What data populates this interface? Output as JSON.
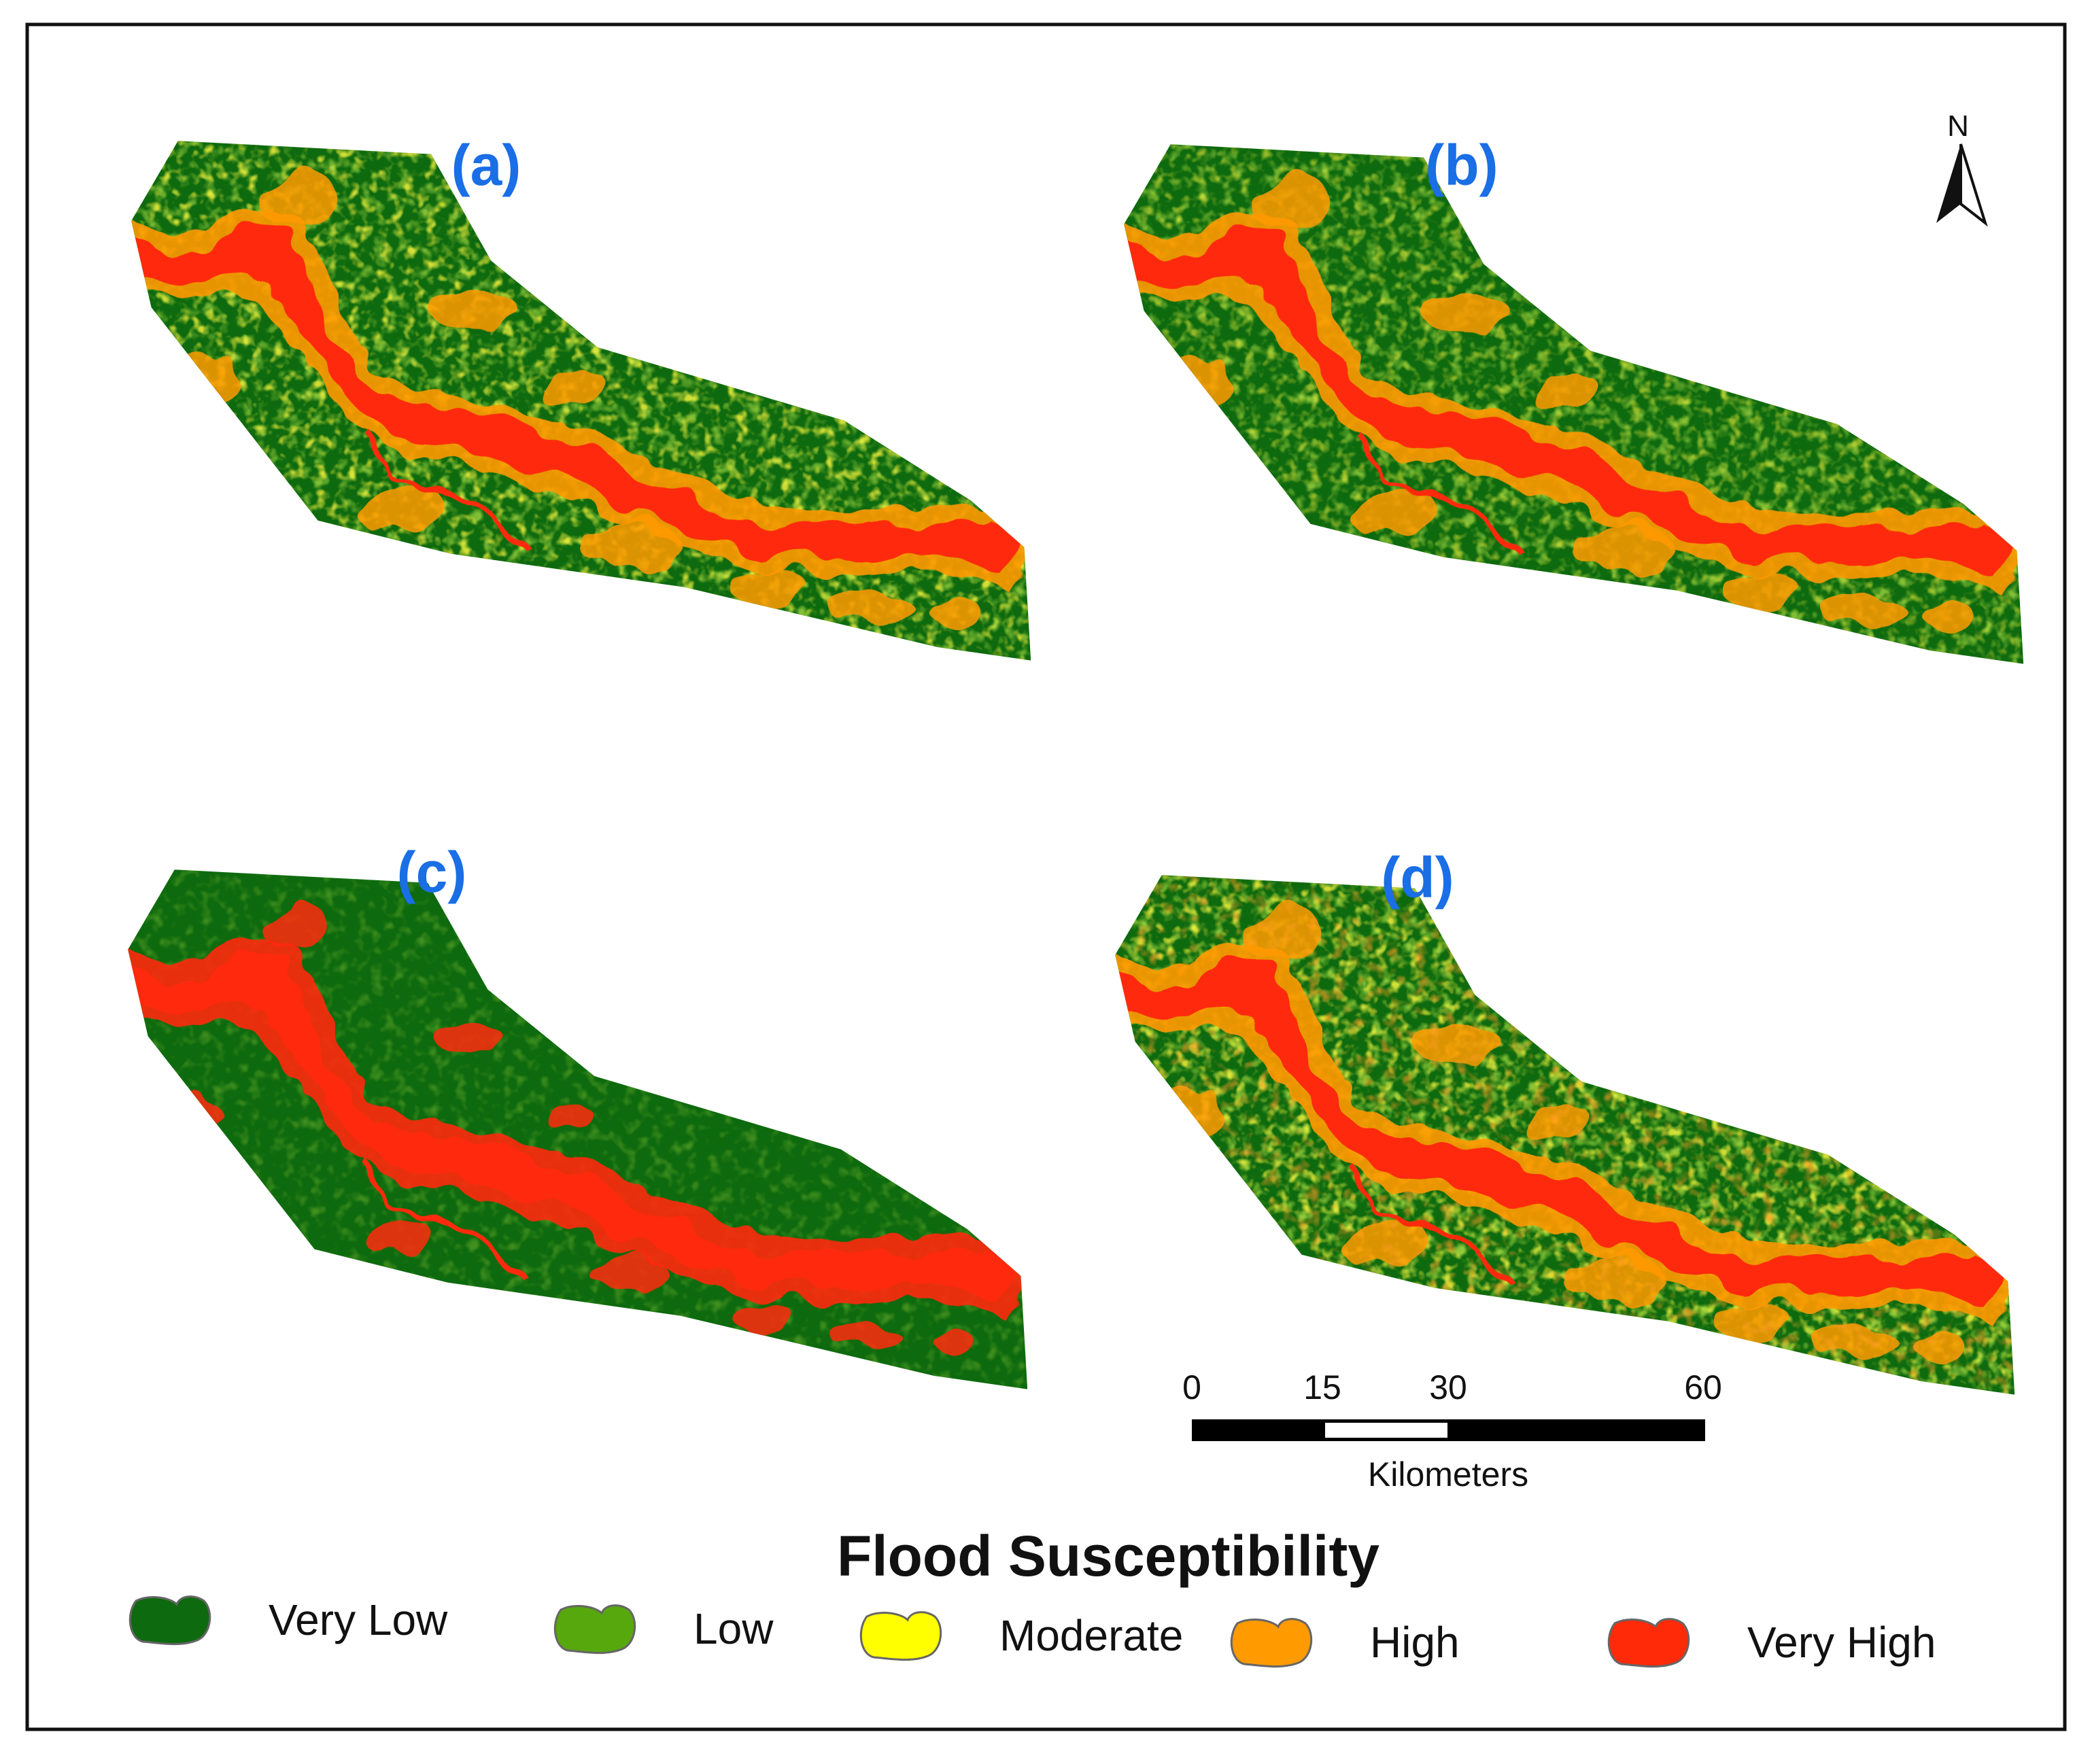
{
  "panels": [
    {
      "label": "(a)"
    },
    {
      "label": "(b)"
    },
    {
      "label": "(c)"
    },
    {
      "label": "(d)"
    }
  ],
  "north_arrow": {
    "label": "N",
    "icon": "north-arrow-icon"
  },
  "scale_bar": {
    "ticks": [
      "0",
      "15",
      "30",
      "60"
    ],
    "unit_label": "Kilometers"
  },
  "legend": {
    "title": "Flood Susceptibility",
    "classes": [
      {
        "label": "Very Low",
        "color": "#0e6a0e"
      },
      {
        "label": "Low",
        "color": "#57a80c"
      },
      {
        "label": "Moderate",
        "color": "#ffff00"
      },
      {
        "label": "High",
        "color": "#ff9a00"
      },
      {
        "label": "Very High",
        "color": "#ff2a08"
      }
    ]
  },
  "colors": {
    "panel_label": "#1a6ee6",
    "frame": "#111111"
  }
}
